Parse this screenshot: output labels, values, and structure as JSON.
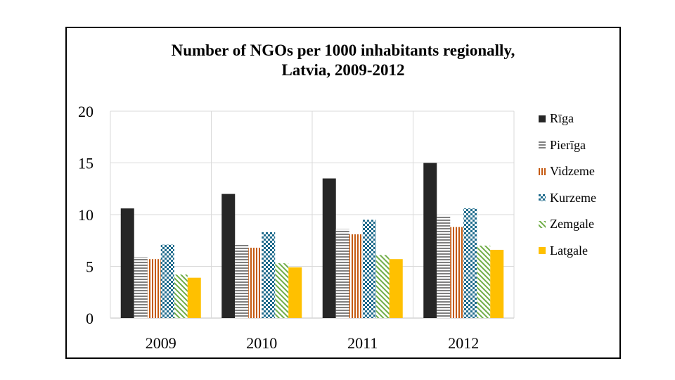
{
  "chart_data": {
    "type": "bar",
    "title": "Number of NGOs per 1000 inhabitants regionally, Latvia, 2009-2012",
    "title_lines": [
      "Number of NGOs per 1000 inhabitants regionally,",
      "Latvia, 2009-2012"
    ],
    "categories": [
      "2009",
      "2010",
      "2011",
      "2012"
    ],
    "series": [
      {
        "name": "Rīga",
        "values": [
          10.6,
          12.0,
          13.5,
          15.0
        ],
        "color": "#262626",
        "pattern": "solid"
      },
      {
        "name": "Pierīga",
        "values": [
          5.9,
          7.2,
          8.6,
          9.8
        ],
        "color": "#808080",
        "pattern": "horizontal"
      },
      {
        "name": "Vidzeme",
        "values": [
          5.7,
          6.8,
          8.1,
          8.8
        ],
        "color": "#C55A11",
        "pattern": "vertical"
      },
      {
        "name": "Kurzeme",
        "values": [
          7.1,
          8.3,
          9.5,
          10.6
        ],
        "color": "#1F6B8C",
        "pattern": "dots"
      },
      {
        "name": "Zemgale",
        "values": [
          4.2,
          5.3,
          6.1,
          7.0
        ],
        "color": "#70AD47",
        "pattern": "diagonal"
      },
      {
        "name": "Latgale",
        "values": [
          3.9,
          4.9,
          5.7,
          6.6
        ],
        "color": "#FFC000",
        "pattern": "solid"
      }
    ],
    "y_ticks": [
      "0",
      "5",
      "10",
      "15",
      "20"
    ],
    "ylim": [
      0,
      20
    ],
    "xlabel": "",
    "ylabel": "",
    "grid": true,
    "legend": "right"
  }
}
